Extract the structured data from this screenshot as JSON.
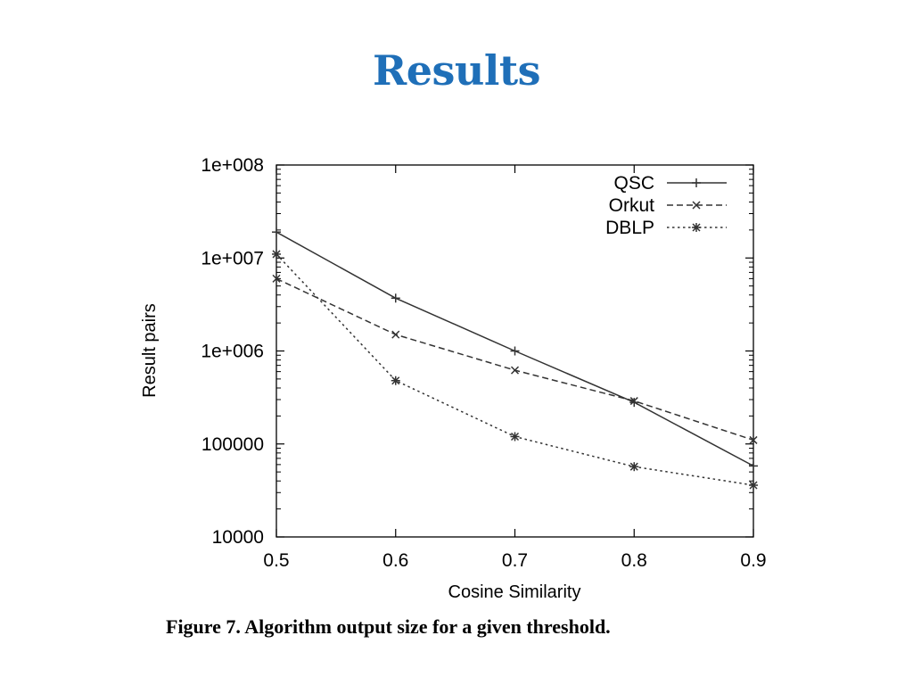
{
  "slide": {
    "title": "Results",
    "caption": "Figure 7.  Algorithm output size for a given threshold."
  },
  "chart_data": {
    "type": "line",
    "title": "",
    "xlabel": "Cosine Similarity",
    "ylabel": "Result pairs",
    "x": [
      0.5,
      0.6,
      0.7,
      0.8,
      0.9
    ],
    "xlim": [
      0.5,
      0.9
    ],
    "ylim": [
      10000,
      100000000
    ],
    "yscale": "log",
    "x_tick_labels": [
      "0.5",
      "0.6",
      "0.7",
      "0.8",
      "0.9"
    ],
    "y_tick_values": [
      10000,
      100000,
      1000000,
      10000000,
      100000000
    ],
    "y_tick_labels": [
      "10000",
      "100000",
      "1e+006",
      "1e+007",
      "1e+008"
    ],
    "grid": false,
    "legend_position": "top-right",
    "series": [
      {
        "name": "QSC",
        "values": [
          19000000,
          3700000,
          1000000,
          280000,
          58000
        ],
        "marker": "plus",
        "line_style": "solid",
        "color": "#333333"
      },
      {
        "name": "Orkut",
        "values": [
          6000000,
          1500000,
          620000,
          290000,
          110000
        ],
        "marker": "x",
        "line_style": "dashed",
        "color": "#333333"
      },
      {
        "name": "DBLP",
        "values": [
          11000000,
          480000,
          120000,
          57000,
          36000
        ],
        "marker": "star",
        "line_style": "dotted",
        "color": "#333333"
      }
    ]
  },
  "colors": {
    "title": "#1f6fb8",
    "axis": "#000000",
    "series": "#333333"
  }
}
